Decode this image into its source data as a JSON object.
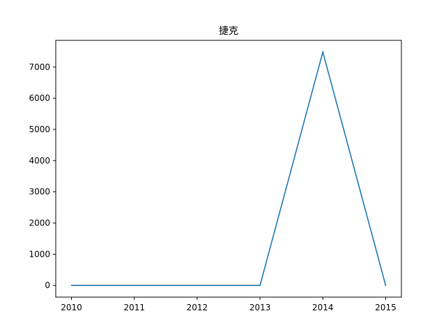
{
  "chart_data": {
    "type": "line",
    "title": "捷克",
    "xlabel": "",
    "ylabel": "",
    "x": [
      2010,
      2011,
      2012,
      2013,
      2014,
      2015
    ],
    "series": [
      {
        "values": [
          0,
          0,
          0,
          0,
          7480,
          0
        ],
        "color": "#1f77b4"
      }
    ],
    "xlim": [
      2009.75,
      2015.25
    ],
    "ylim": [
      -374,
      7854
    ],
    "xticks": [
      2010,
      2011,
      2012,
      2013,
      2014,
      2015
    ],
    "xtick_labels": [
      "2010",
      "2011",
      "2012",
      "2013",
      "2014",
      "2015"
    ],
    "yticks": [
      0,
      1000,
      2000,
      3000,
      4000,
      5000,
      6000,
      7000
    ],
    "ytick_labels": [
      "0",
      "1000",
      "2000",
      "3000",
      "4000",
      "5000",
      "6000",
      "7000"
    ],
    "grid": false,
    "legend": "none"
  }
}
